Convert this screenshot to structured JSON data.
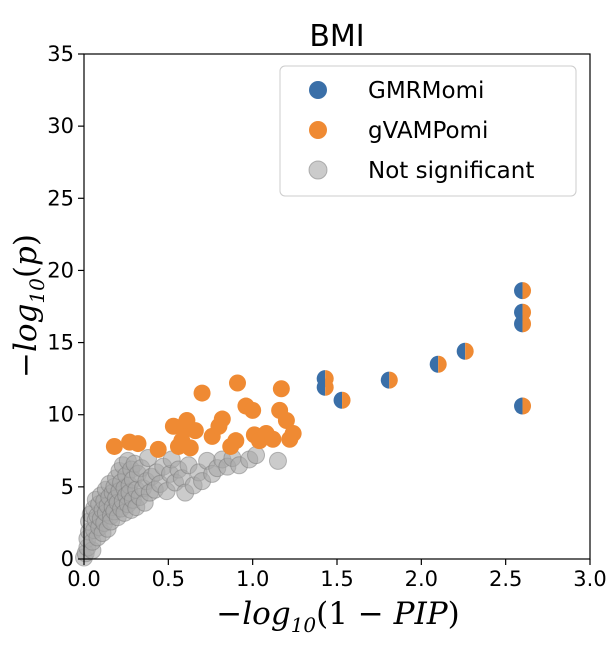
{
  "chart_data": {
    "type": "scatter",
    "title": "BMI",
    "xlabel_parts": [
      "−",
      "log",
      "10",
      "(1 − ",
      "PIP",
      ")"
    ],
    "ylabel_parts": [
      "−",
      "log",
      "10",
      "(",
      "p",
      ")"
    ],
    "xlim": [
      0,
      3.0
    ],
    "ylim": [
      0,
      35
    ],
    "xticks": [
      "0.0",
      "0.5",
      "1.0",
      "1.5",
      "2.0",
      "2.5",
      "3.0"
    ],
    "yticks": [
      "0",
      "5",
      "10",
      "15",
      "20",
      "25",
      "30",
      "35"
    ],
    "grid": false,
    "legend_position": "top-right",
    "legend": [
      {
        "label": "GMRMomi",
        "color": "#3a6fa8"
      },
      {
        "label": "gVAMPomi",
        "color": "#ef8a33"
      },
      {
        "label": "Not significant",
        "color": "#a9a9a9"
      }
    ],
    "series": [
      {
        "name": "GMRMomi",
        "color": "#3a6fa8",
        "points": [
          [
            1.43,
            12.5
          ],
          [
            1.43,
            11.9
          ],
          [
            1.53,
            11.0
          ],
          [
            1.81,
            12.4
          ],
          [
            2.1,
            13.5
          ],
          [
            2.26,
            14.4
          ],
          [
            2.6,
            18.6
          ],
          [
            2.6,
            17.1
          ],
          [
            2.6,
            16.3
          ],
          [
            2.6,
            10.6
          ]
        ]
      },
      {
        "name": "gVAMPomi",
        "color": "#ef8a33",
        "points": [
          [
            0.18,
            7.8
          ],
          [
            0.27,
            8.1
          ],
          [
            0.32,
            8.0
          ],
          [
            0.44,
            7.6
          ],
          [
            0.53,
            9.2
          ],
          [
            0.56,
            7.8
          ],
          [
            0.58,
            8.2
          ],
          [
            0.6,
            9.0
          ],
          [
            0.61,
            9.6
          ],
          [
            0.63,
            7.7
          ],
          [
            0.66,
            8.9
          ],
          [
            0.7,
            11.5
          ],
          [
            0.76,
            8.5
          ],
          [
            0.8,
            9.2
          ],
          [
            0.82,
            9.7
          ],
          [
            0.87,
            7.8
          ],
          [
            0.9,
            8.2
          ],
          [
            0.91,
            12.2
          ],
          [
            0.96,
            10.6
          ],
          [
            1.0,
            10.3
          ],
          [
            1.01,
            8.6
          ],
          [
            1.04,
            8.2
          ],
          [
            1.08,
            8.7
          ],
          [
            1.12,
            8.3
          ],
          [
            1.16,
            10.3
          ],
          [
            1.17,
            11.8
          ],
          [
            1.2,
            9.6
          ],
          [
            1.22,
            8.3
          ],
          [
            1.24,
            8.7
          ]
        ]
      },
      {
        "name": "Not significant",
        "color": "#a9a9a9",
        "points": [
          [
            0.0,
            0.1
          ],
          [
            0.01,
            0.4
          ],
          [
            0.02,
            0.8
          ],
          [
            0.02,
            1.4
          ],
          [
            0.03,
            1.9
          ],
          [
            0.03,
            2.6
          ],
          [
            0.04,
            3.1
          ],
          [
            0.05,
            0.6
          ],
          [
            0.05,
            1.2
          ],
          [
            0.06,
            2.0
          ],
          [
            0.06,
            3.5
          ],
          [
            0.07,
            2.7
          ],
          [
            0.07,
            4.1
          ],
          [
            0.08,
            1.5
          ],
          [
            0.08,
            3.0
          ],
          [
            0.09,
            2.2
          ],
          [
            0.09,
            3.8
          ],
          [
            0.1,
            4.4
          ],
          [
            0.1,
            2.8
          ],
          [
            0.11,
            3.4
          ],
          [
            0.11,
            1.8
          ],
          [
            0.12,
            4.0
          ],
          [
            0.12,
            2.5
          ],
          [
            0.13,
            3.2
          ],
          [
            0.13,
            4.8
          ],
          [
            0.14,
            3.7
          ],
          [
            0.14,
            2.1
          ],
          [
            0.15,
            4.3
          ],
          [
            0.15,
            5.2
          ],
          [
            0.16,
            3.0
          ],
          [
            0.16,
            2.6
          ],
          [
            0.17,
            4.6
          ],
          [
            0.17,
            3.6
          ],
          [
            0.18,
            5.0
          ],
          [
            0.18,
            3.3
          ],
          [
            0.19,
            4.2
          ],
          [
            0.19,
            5.6
          ],
          [
            0.2,
            3.9
          ],
          [
            0.2,
            2.9
          ],
          [
            0.21,
            4.7
          ],
          [
            0.21,
            6.1
          ],
          [
            0.22,
            3.5
          ],
          [
            0.22,
            5.3
          ],
          [
            0.23,
            4.0
          ],
          [
            0.23,
            6.5
          ],
          [
            0.24,
            4.9
          ],
          [
            0.24,
            3.2
          ],
          [
            0.25,
            5.8
          ],
          [
            0.25,
            4.4
          ],
          [
            0.26,
            6.8
          ],
          [
            0.26,
            3.8
          ],
          [
            0.27,
            5.1
          ],
          [
            0.27,
            4.6
          ],
          [
            0.28,
            6.2
          ],
          [
            0.28,
            3.4
          ],
          [
            0.29,
            5.5
          ],
          [
            0.29,
            4.1
          ],
          [
            0.3,
            6.6
          ],
          [
            0.31,
            4.8
          ],
          [
            0.31,
            3.6
          ],
          [
            0.32,
            5.9
          ],
          [
            0.33,
            4.3
          ],
          [
            0.34,
            6.3
          ],
          [
            0.35,
            4.9
          ],
          [
            0.36,
            3.9
          ],
          [
            0.37,
            5.4
          ],
          [
            0.38,
            7.0
          ],
          [
            0.39,
            4.6
          ],
          [
            0.4,
            5.7
          ],
          [
            0.42,
            4.8
          ],
          [
            0.43,
            6.0
          ],
          [
            0.45,
            5.2
          ],
          [
            0.47,
            6.4
          ],
          [
            0.49,
            4.7
          ],
          [
            0.51,
            5.9
          ],
          [
            0.52,
            6.9
          ],
          [
            0.54,
            5.3
          ],
          [
            0.56,
            6.2
          ],
          [
            0.58,
            5.6
          ],
          [
            0.6,
            4.6
          ],
          [
            0.62,
            6.5
          ],
          [
            0.65,
            5.1
          ],
          [
            0.68,
            6.0
          ],
          [
            0.7,
            5.4
          ],
          [
            0.73,
            6.8
          ],
          [
            0.76,
            5.9
          ],
          [
            0.79,
            6.3
          ],
          [
            0.82,
            6.9
          ],
          [
            0.85,
            6.4
          ],
          [
            0.88,
            7.0
          ],
          [
            0.92,
            6.5
          ],
          [
            0.98,
            6.9
          ],
          [
            1.02,
            7.2
          ],
          [
            1.15,
            6.8
          ]
        ]
      }
    ]
  }
}
